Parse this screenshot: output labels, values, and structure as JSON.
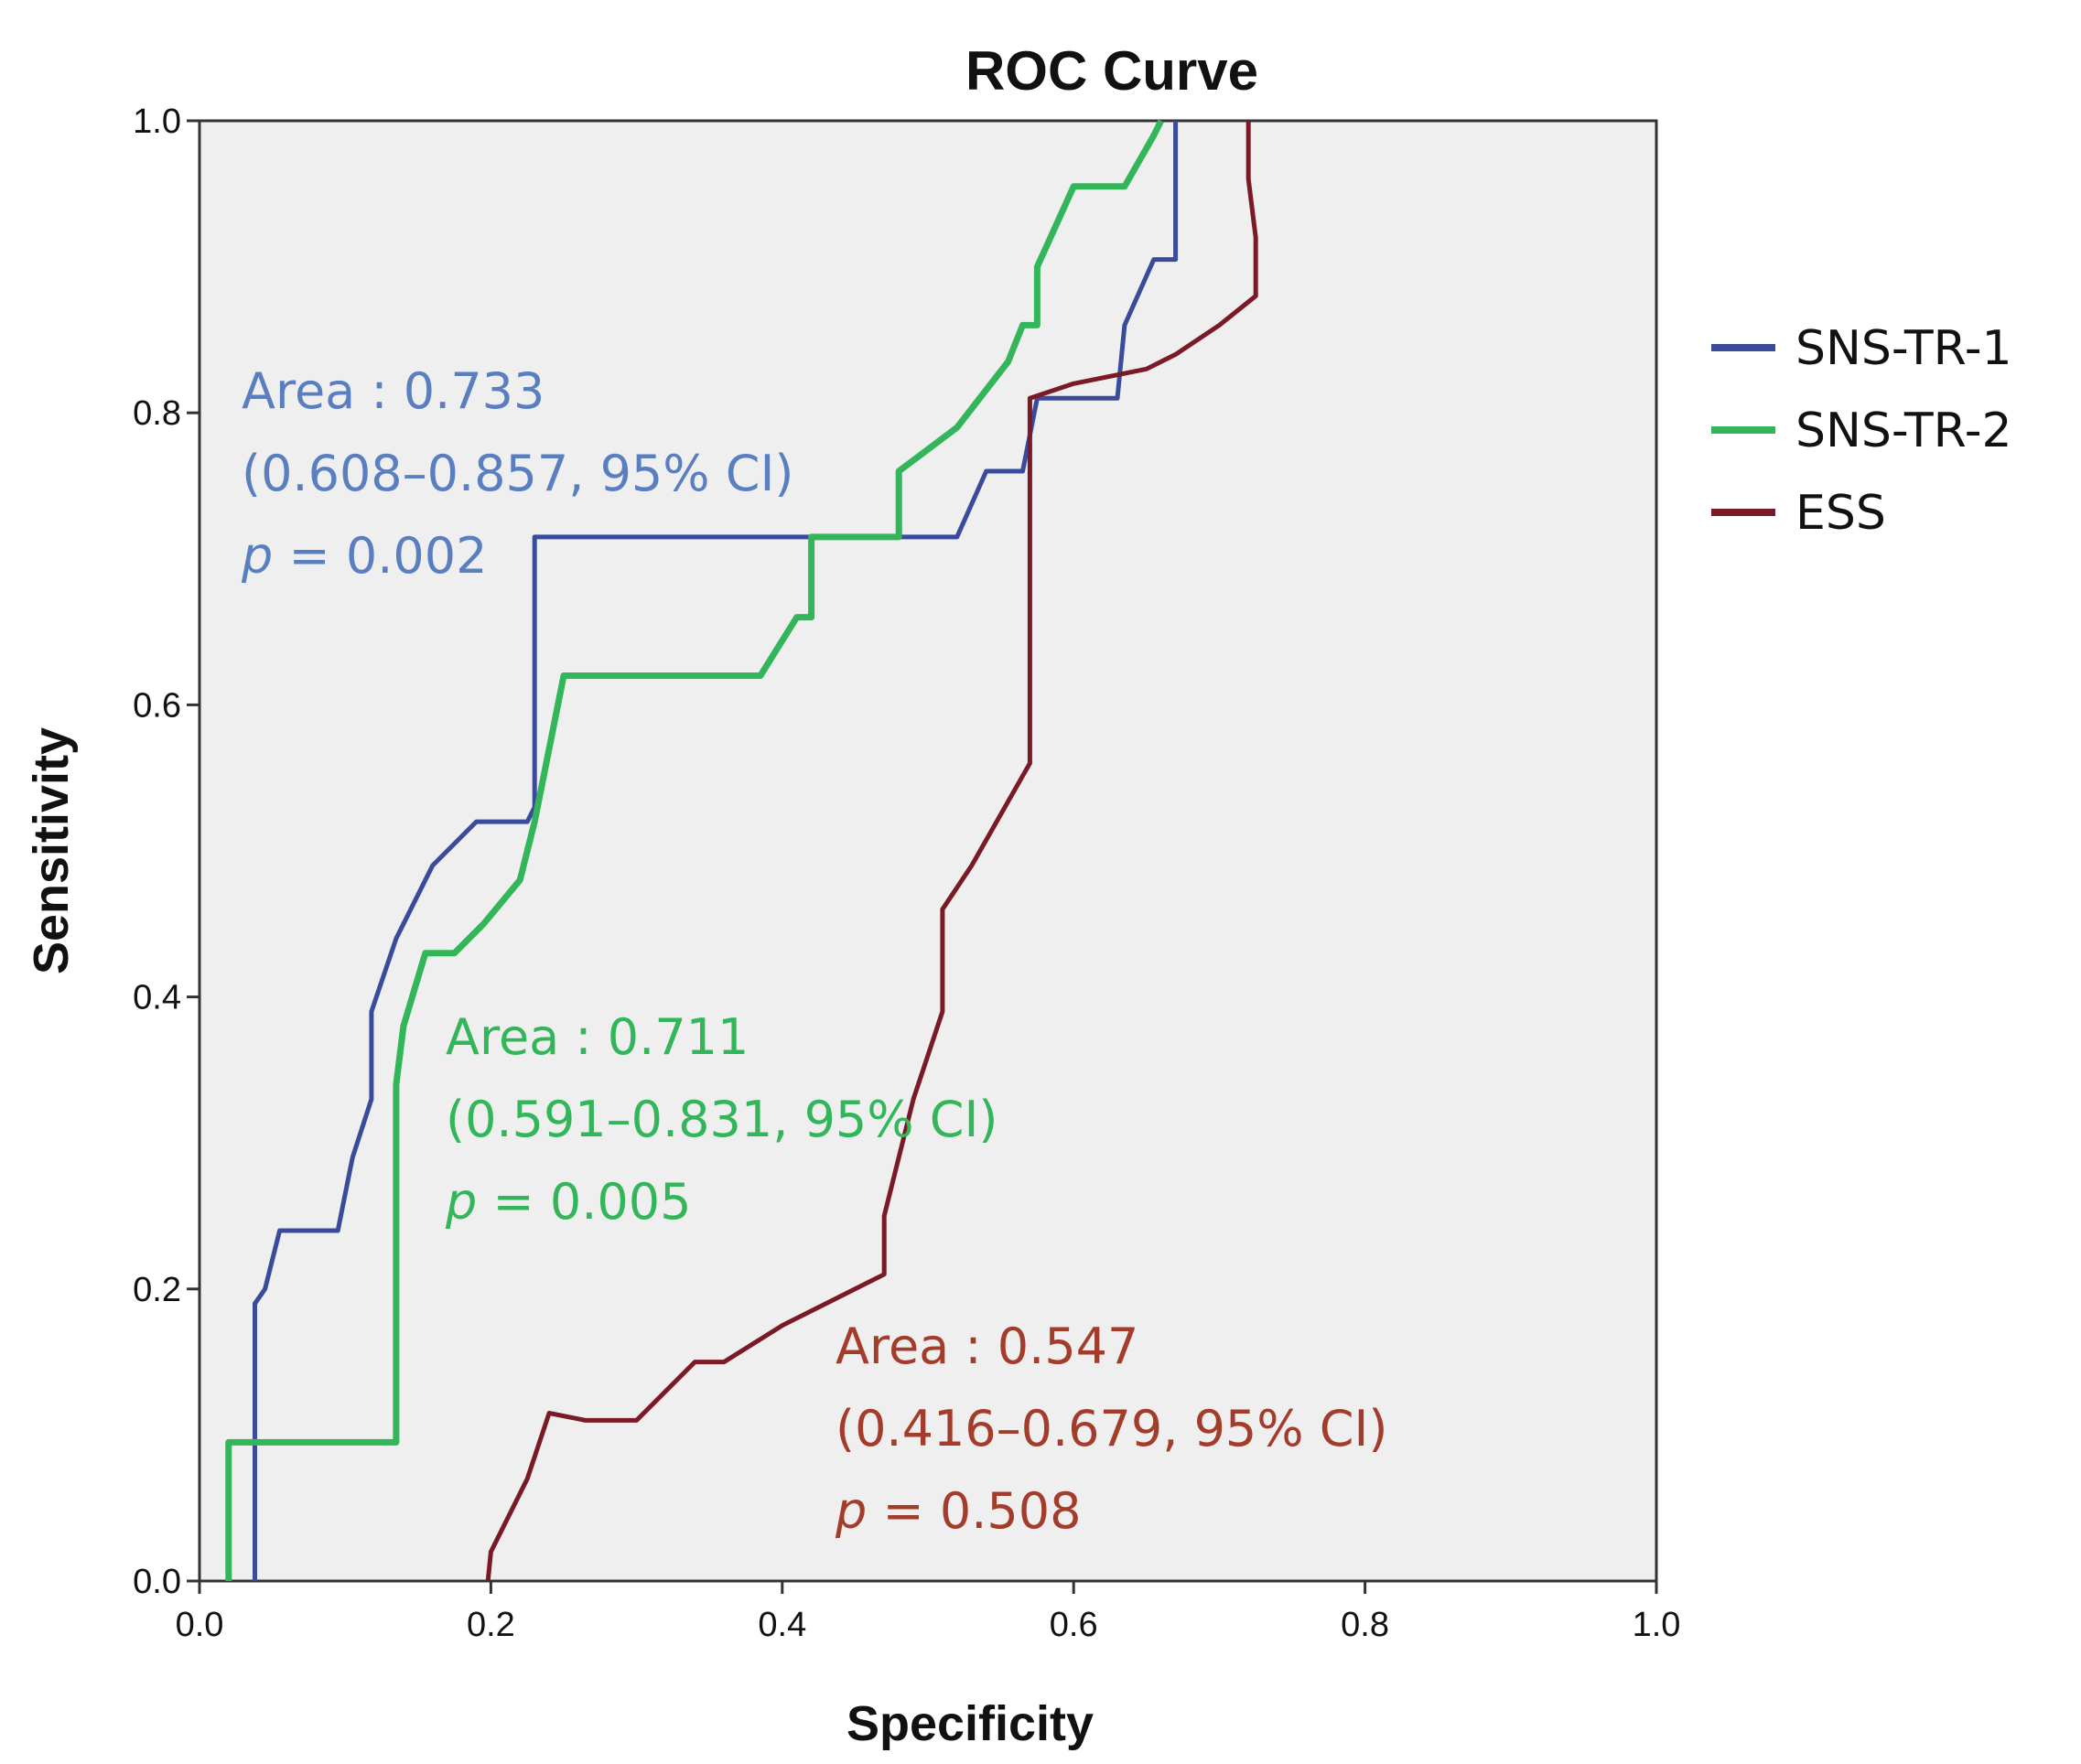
{
  "chart_data": {
    "type": "line",
    "title": "ROC Curve",
    "xlabel": "Specificity",
    "ylabel": "Sensitivity",
    "xlim": [
      0,
      1
    ],
    "ylim": [
      0,
      1
    ],
    "xticks": [
      "0.0",
      "0.2",
      "0.4",
      "0.6",
      "0.8",
      "1.0"
    ],
    "yticks": [
      "0.0",
      "0.2",
      "0.4",
      "0.6",
      "0.8",
      "1.0"
    ],
    "legend_position": "right",
    "series": [
      {
        "name": "SNS-TR-1",
        "color": "#3a4b9c",
        "points": [
          [
            0.038,
            0.0
          ],
          [
            0.038,
            0.19
          ],
          [
            0.045,
            0.2
          ],
          [
            0.055,
            0.24
          ],
          [
            0.095,
            0.24
          ],
          [
            0.105,
            0.29
          ],
          [
            0.118,
            0.33
          ],
          [
            0.118,
            0.39
          ],
          [
            0.135,
            0.44
          ],
          [
            0.16,
            0.49
          ],
          [
            0.19,
            0.52
          ],
          [
            0.225,
            0.52
          ],
          [
            0.23,
            0.53
          ],
          [
            0.23,
            0.715
          ],
          [
            0.52,
            0.715
          ],
          [
            0.54,
            0.76
          ],
          [
            0.565,
            0.76
          ],
          [
            0.575,
            0.81
          ],
          [
            0.6,
            0.81
          ],
          [
            0.63,
            0.81
          ],
          [
            0.635,
            0.86
          ],
          [
            0.655,
            0.905
          ],
          [
            0.67,
            0.905
          ],
          [
            0.67,
            1.0
          ]
        ]
      },
      {
        "name": "SNS-TR-2",
        "color": "#33b55a",
        "points": [
          [
            0.02,
            0.0
          ],
          [
            0.02,
            0.095
          ],
          [
            0.135,
            0.095
          ],
          [
            0.135,
            0.34
          ],
          [
            0.14,
            0.38
          ],
          [
            0.155,
            0.43
          ],
          [
            0.175,
            0.43
          ],
          [
            0.195,
            0.45
          ],
          [
            0.22,
            0.48
          ],
          [
            0.23,
            0.52
          ],
          [
            0.25,
            0.62
          ],
          [
            0.36,
            0.62
          ],
          [
            0.385,
            0.62
          ],
          [
            0.41,
            0.66
          ],
          [
            0.42,
            0.66
          ],
          [
            0.42,
            0.715
          ],
          [
            0.48,
            0.715
          ],
          [
            0.48,
            0.76
          ],
          [
            0.52,
            0.79
          ],
          [
            0.555,
            0.835
          ],
          [
            0.565,
            0.86
          ],
          [
            0.575,
            0.86
          ],
          [
            0.575,
            0.9
          ],
          [
            0.6,
            0.955
          ],
          [
            0.635,
            0.955
          ],
          [
            0.655,
            0.99
          ],
          [
            0.66,
            1.0
          ]
        ]
      },
      {
        "name": "ESS",
        "color": "#7a1a26",
        "points": [
          [
            0.198,
            0.0
          ],
          [
            0.2,
            0.02
          ],
          [
            0.225,
            0.07
          ],
          [
            0.24,
            0.115
          ],
          [
            0.265,
            0.11
          ],
          [
            0.3,
            0.11
          ],
          [
            0.34,
            0.15
          ],
          [
            0.36,
            0.15
          ],
          [
            0.4,
            0.175
          ],
          [
            0.47,
            0.21
          ],
          [
            0.47,
            0.25
          ],
          [
            0.49,
            0.33
          ],
          [
            0.51,
            0.39
          ],
          [
            0.51,
            0.46
          ],
          [
            0.53,
            0.49
          ],
          [
            0.57,
            0.56
          ],
          [
            0.57,
            0.81
          ],
          [
            0.6,
            0.82
          ],
          [
            0.65,
            0.83
          ],
          [
            0.67,
            0.84
          ],
          [
            0.7,
            0.86
          ],
          [
            0.725,
            0.88
          ],
          [
            0.725,
            0.92
          ],
          [
            0.72,
            0.96
          ],
          [
            0.72,
            1.0
          ]
        ]
      }
    ],
    "annotations": [
      {
        "series": "SNS-TR-1",
        "area": "Area : 0.733",
        "ci": "(0.608–0.857, 95% CI)",
        "p_italic": "p",
        "p_rest": " = 0.002"
      },
      {
        "series": "SNS-TR-2",
        "area": "Area : 0.711",
        "ci": "(0.591–0.831, 95% CI)",
        "p_italic": "p",
        "p_rest": " = 0.005"
      },
      {
        "series": "ESS",
        "area": "Area : 0.547",
        "ci": "(0.416–0.679, 95% CI)",
        "p_italic": "p",
        "p_rest": " = 0.508"
      }
    ]
  },
  "colors": {
    "plot_background": "#efefef",
    "blue_text": "#5a7fc0",
    "green_text": "#33b55a",
    "red_text": "#a43c2c"
  }
}
